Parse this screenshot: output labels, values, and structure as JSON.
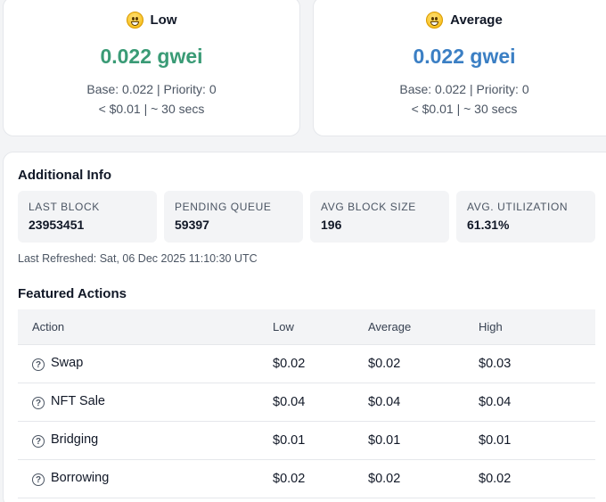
{
  "cards": [
    {
      "label": "Low",
      "icon": "grinning-face-icon",
      "price": "0.022 gwei",
      "base_priority": "Base: 0.022 | Priority: 0",
      "cost_time": "< $0.01 | ~ 30 secs",
      "color": "#3a9b76"
    },
    {
      "label": "Average",
      "icon": "smiling-face-icon",
      "price": "0.022 gwei",
      "base_priority": "Base: 0.022 | Priority: 0",
      "cost_time": "< $0.01 | ~ 30 secs",
      "color": "#3b7fc4"
    }
  ],
  "additional_info": {
    "title": "Additional Info",
    "stats": [
      {
        "label": "LAST BLOCK",
        "value": "23953451"
      },
      {
        "label": "PENDING QUEUE",
        "value": "59397"
      },
      {
        "label": "AVG BLOCK SIZE",
        "value": "196"
      },
      {
        "label": "AVG. UTILIZATION",
        "value": "61.31%"
      }
    ],
    "last_refreshed": "Last Refreshed: Sat, 06 Dec 2025 11:10:30 UTC"
  },
  "featured_actions": {
    "title": "Featured Actions",
    "columns": [
      "Action",
      "Low",
      "Average",
      "High"
    ],
    "rows": [
      {
        "action": "Swap",
        "low": "$0.02",
        "average": "$0.02",
        "high": "$0.03"
      },
      {
        "action": "NFT Sale",
        "low": "$0.04",
        "average": "$0.04",
        "high": "$0.04"
      },
      {
        "action": "Bridging",
        "low": "$0.01",
        "average": "$0.01",
        "high": "$0.01"
      },
      {
        "action": "Borrowing",
        "low": "$0.02",
        "average": "$0.02",
        "high": "$0.02"
      }
    ]
  }
}
